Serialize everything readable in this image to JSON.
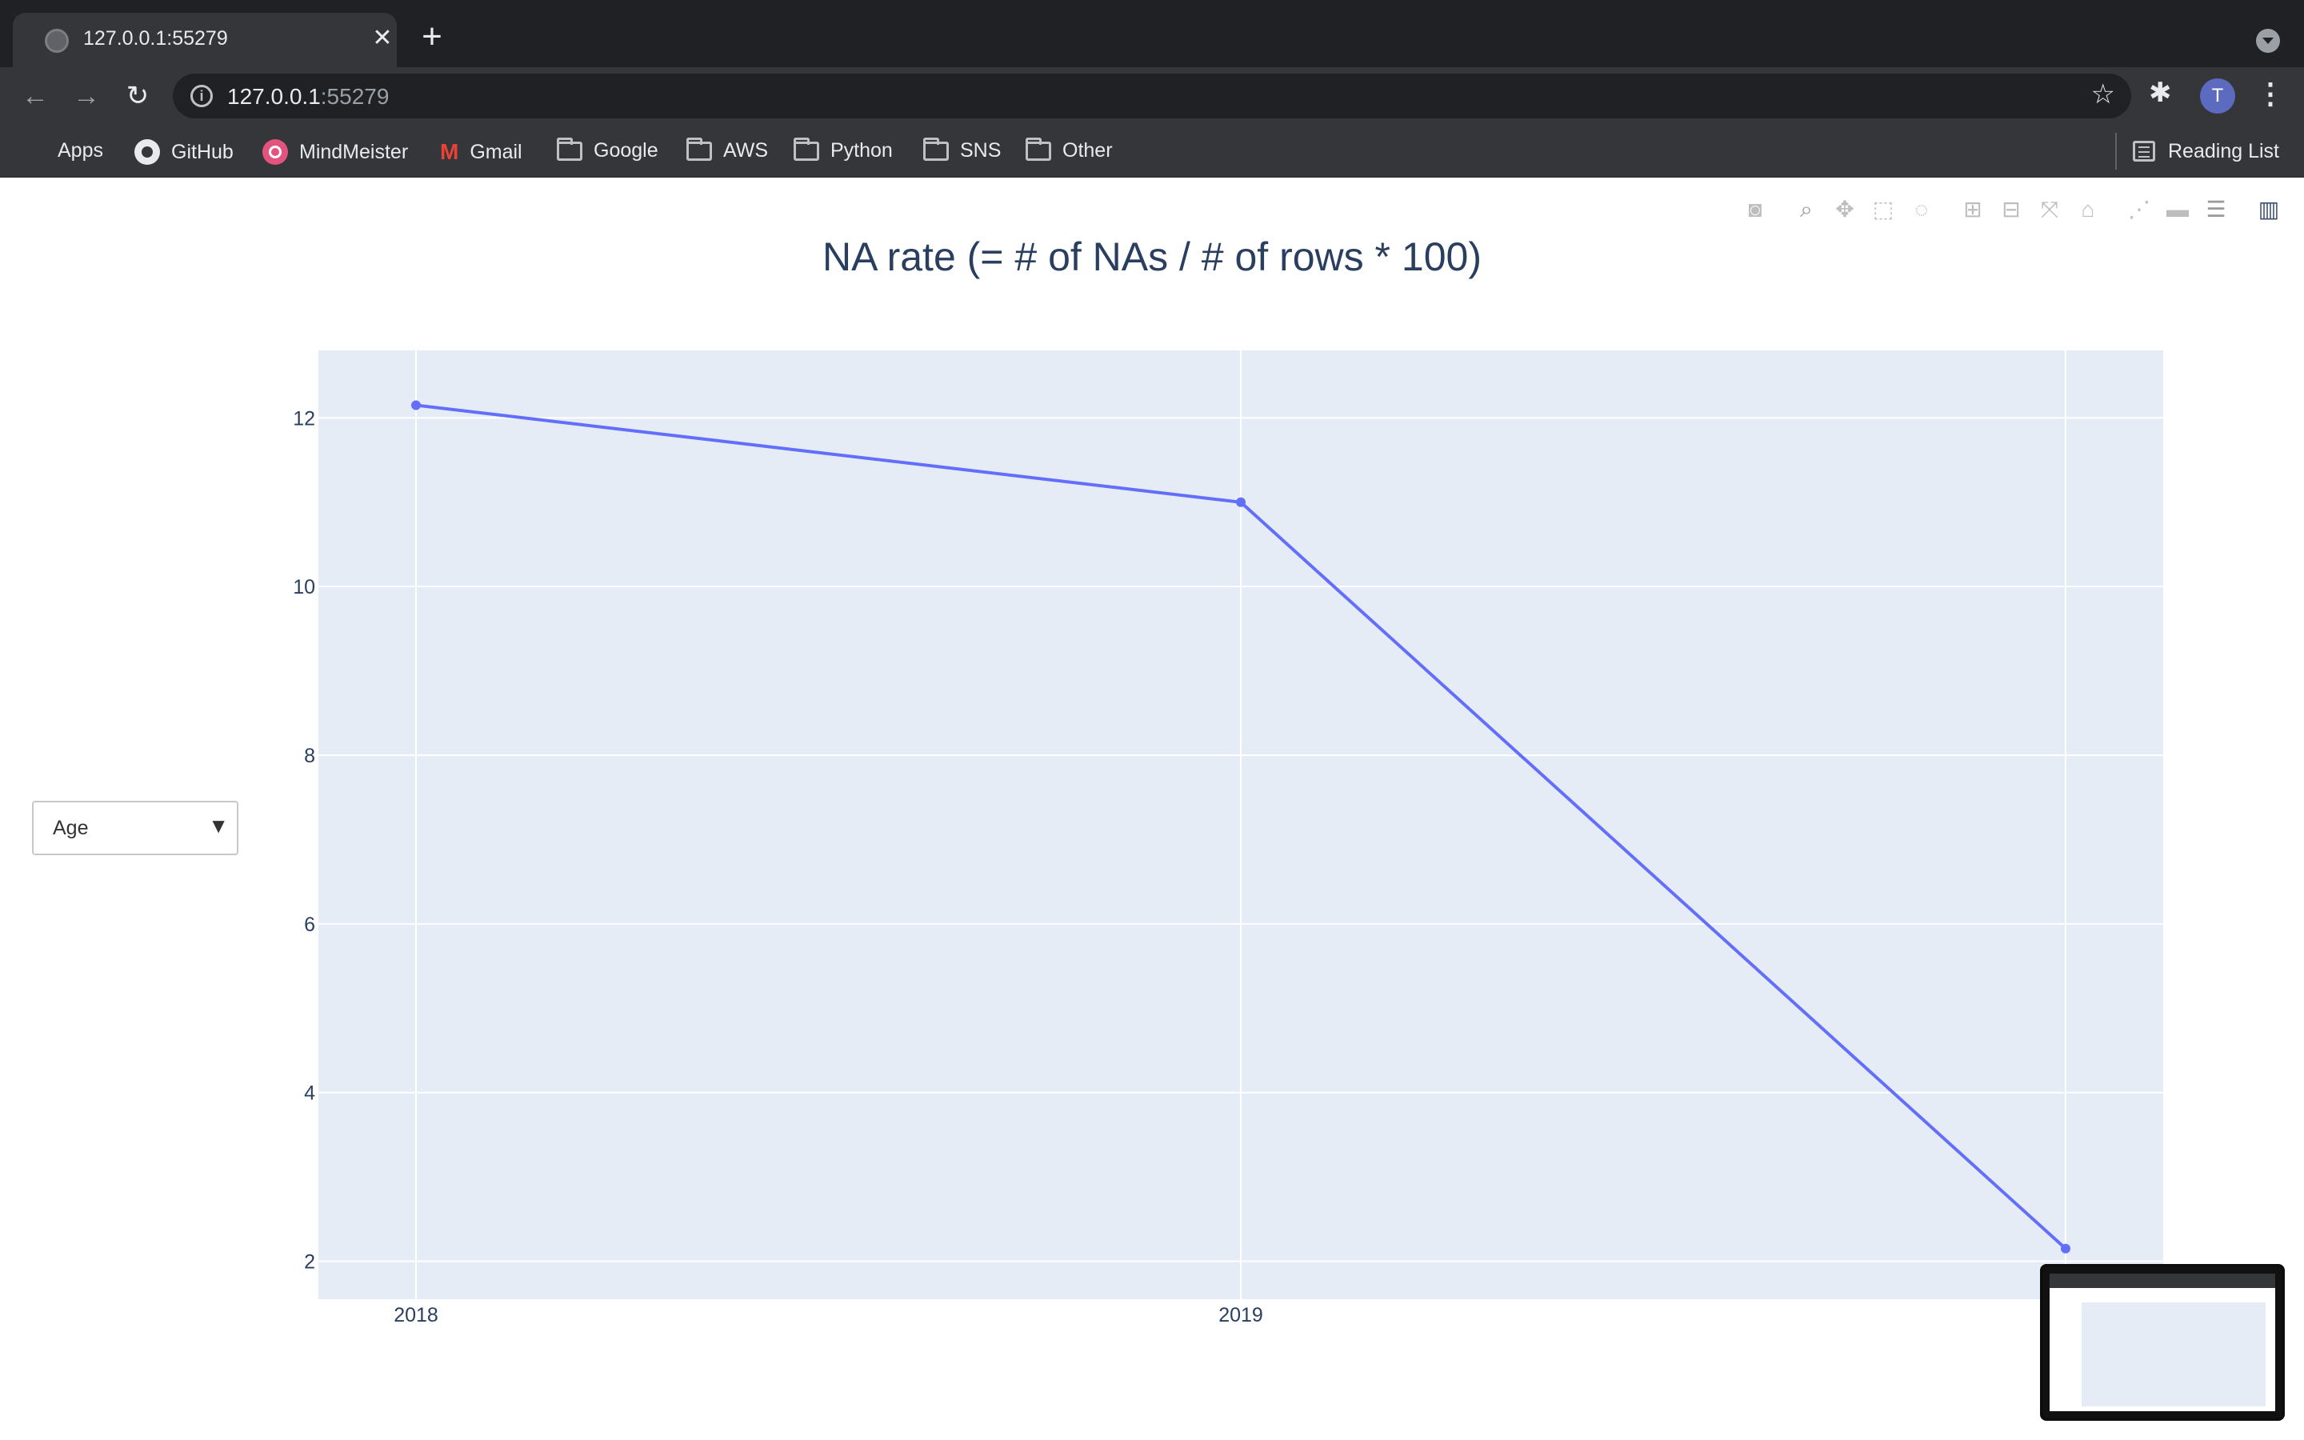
{
  "browser": {
    "tab_title": "127.0.0.1:55279",
    "tab_close_icon": "close-icon",
    "new_tab_icon": "plus-icon",
    "url_host": "127.0.0.1",
    "url_port": ":55279",
    "avatar_letter": "T",
    "bookmarks": [
      {
        "label": "Apps",
        "icon": "apps-grid-icon"
      },
      {
        "label": "GitHub",
        "icon": "github-icon"
      },
      {
        "label": "MindMeister",
        "icon": "mindmeister-icon"
      },
      {
        "label": "Gmail",
        "icon": "gmail-icon"
      },
      {
        "label": "Google",
        "icon": "folder-icon"
      },
      {
        "label": "AWS",
        "icon": "folder-icon"
      },
      {
        "label": "Python",
        "icon": "folder-icon"
      },
      {
        "label": "SNS",
        "icon": "folder-icon"
      },
      {
        "label": "Other",
        "icon": "folder-icon"
      }
    ],
    "reading_list": "Reading List"
  },
  "dropdown": {
    "selected": "Age",
    "arrow": "▼"
  },
  "colors": {
    "line": "#636efa",
    "plot_bg": "#e5ecf6",
    "text": "#2a3f5f"
  },
  "chart_data": {
    "type": "line",
    "title": "NA rate (= # of NAs / # of rows * 100)",
    "x": [
      "2018",
      "2019",
      "2020"
    ],
    "series": [
      {
        "values": [
          12.15,
          11.0,
          2.15
        ]
      }
    ],
    "xlabel": "",
    "ylabel": "",
    "yticks": [
      2,
      4,
      6,
      8,
      10,
      12
    ],
    "xticks": [
      "2018",
      "2019"
    ],
    "ylim": [
      1.55,
      12.8
    ],
    "grid": true
  }
}
